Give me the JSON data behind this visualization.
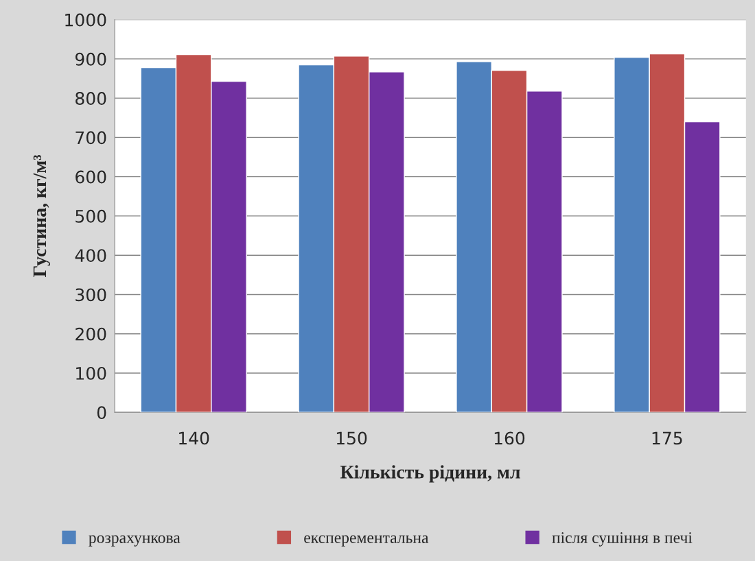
{
  "chart_data": {
    "type": "bar",
    "xlabel": "Кількість рідини, мл",
    "ylabel": "Густина, кг/м³",
    "categories": [
      "140",
      "150",
      "160",
      "175"
    ],
    "series": [
      {
        "name": "розрахункова",
        "color": "#4f81bd",
        "values": [
          878,
          885,
          893,
          904
        ]
      },
      {
        "name": "експерементальна",
        "color": "#c0504d",
        "values": [
          911,
          907,
          871,
          913
        ]
      },
      {
        "name": "після сушіння в печі",
        "color": "#7030a0",
        "values": [
          843,
          867,
          818,
          740
        ]
      }
    ],
    "ylim": [
      0,
      1000
    ],
    "yticks": [
      0,
      100,
      200,
      300,
      400,
      500,
      600,
      700,
      800,
      900,
      1000
    ],
    "grid": "y",
    "legend": "bottom"
  }
}
